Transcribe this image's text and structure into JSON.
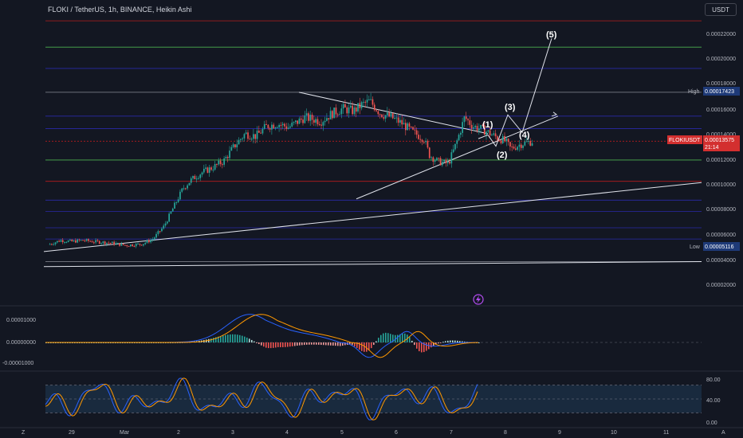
{
  "header": {
    "title": "FLOKI / TetherUS, 1h, BINANCE, Heikin Ashi",
    "currency": "USDT"
  },
  "colors": {
    "background": "#131722",
    "up": "#26a69a",
    "down": "#ef5350",
    "trendline": "#e0e3eb",
    "level_red": "#b71c1c",
    "level_green": "#4caf50",
    "level_blue": "#2a2aa8",
    "macd": "#2962ff",
    "signal": "#ff9800"
  },
  "price_panel": {
    "y_ticks": [
      "0.00022000",
      "0.00020000",
      "0.00018000",
      "0.00016000",
      "0.00014000",
      "0.00012000",
      "0.00010000",
      "0.00008000",
      "0.00006000",
      "0.00004000",
      "0.00002000"
    ],
    "high_label": "High",
    "high_value": "0.00017423",
    "low_label": "Low",
    "low_value": "0.00005116",
    "symbol_label": "FLOKIUSDT",
    "last_price": "0.00013575",
    "countdown": "21:14",
    "wave_labels": [
      "(1)",
      "(2)",
      "(3)",
      "(4)",
      "(5)"
    ]
  },
  "macd_panel": {
    "y_ticks": [
      "0.00001000",
      "0.00000000",
      "-0.00001000"
    ]
  },
  "rsi_panel": {
    "y_ticks": [
      "80.00",
      "40.00",
      "0.00"
    ]
  },
  "time_axis": {
    "ticks": [
      "29",
      "Mar",
      "2",
      "3",
      "4",
      "5",
      "6",
      "7",
      "8",
      "9",
      "10",
      "11"
    ]
  },
  "chart_data": {
    "type": "candlestick",
    "title": "FLOKI / TetherUS, 1h, BINANCE, Heikin Ashi",
    "y_range": [
      1e-05,
      0.000235
    ],
    "x_categories": [
      "29",
      "Mar",
      "2",
      "3",
      "4",
      "5",
      "6",
      "7",
      "8",
      "9",
      "10",
      "11"
    ],
    "price_path": [
      [
        28.6,
        5.4e-05
      ],
      [
        28.8,
        5.7e-05
      ],
      [
        29.0,
        5.6e-05
      ],
      [
        29.2,
        5.7e-05
      ],
      [
        29.4,
        5.6e-05
      ],
      [
        29.7,
        5.5e-05
      ],
      [
        30.0,
        5.3e-05
      ],
      [
        30.3,
        5.4e-05
      ],
      [
        30.5,
        5.8e-05
      ],
      [
        30.7,
        6.8e-05
      ],
      [
        30.9,
        8.5e-05
      ],
      [
        31.05,
        9.8e-05
      ],
      [
        31.2,
        0.000105
      ],
      [
        31.4,
        0.000111
      ],
      [
        31.6,
        0.000115
      ],
      [
        31.8,
        0.00012
      ],
      [
        32.0,
        0.000132
      ],
      [
        32.2,
        0.000142
      ],
      [
        32.4,
        0.00014
      ],
      [
        32.6,
        0.000148
      ],
      [
        32.8,
        0.00015
      ],
      [
        33.0,
        0.000147
      ],
      [
        33.3,
        0.000155
      ],
      [
        33.6,
        0.000152
      ],
      [
        33.8,
        0.000158
      ],
      [
        34.0,
        0.000162
      ],
      [
        34.2,
        0.00016
      ],
      [
        34.35,
        0.000165
      ],
      [
        34.5,
        0.000168
      ],
      [
        34.7,
        0.000158
      ],
      [
        34.9,
        0.000155
      ],
      [
        35.1,
        0.00015
      ],
      [
        35.3,
        0.000143
      ],
      [
        35.5,
        0.000138
      ],
      [
        35.6,
        0.000125
      ],
      [
        35.75,
        0.00012
      ],
      [
        35.95,
        0.000118
      ],
      [
        36.1,
        0.000135
      ],
      [
        36.25,
        0.000155
      ],
      [
        36.4,
        0.000148
      ],
      [
        36.6,
        0.000145
      ],
      [
        36.8,
        0.00014
      ],
      [
        37.0,
        0.000136
      ],
      [
        37.1,
        0.00013
      ],
      [
        37.3,
        0.000134
      ],
      [
        37.5,
        0.000136
      ]
    ],
    "high": 0.00017423,
    "low": 5.116e-05,
    "last_price": 0.00013575,
    "elliott_wave_projection": [
      {
        "label": "(1)",
        "price": 0.00014
      },
      {
        "label": "(2)",
        "price": 0.000128
      },
      {
        "label": "(3)",
        "price": 0.000158
      },
      {
        "label": "(4)",
        "price": 0.000143
      },
      {
        "label": "(5)",
        "price": 0.000218
      }
    ],
    "macd_range": [
      -1.3e-05,
      1.7e-05
    ],
    "rsi_range": [
      0,
      100
    ],
    "rsi_levels": [
      80,
      50,
      20
    ]
  }
}
